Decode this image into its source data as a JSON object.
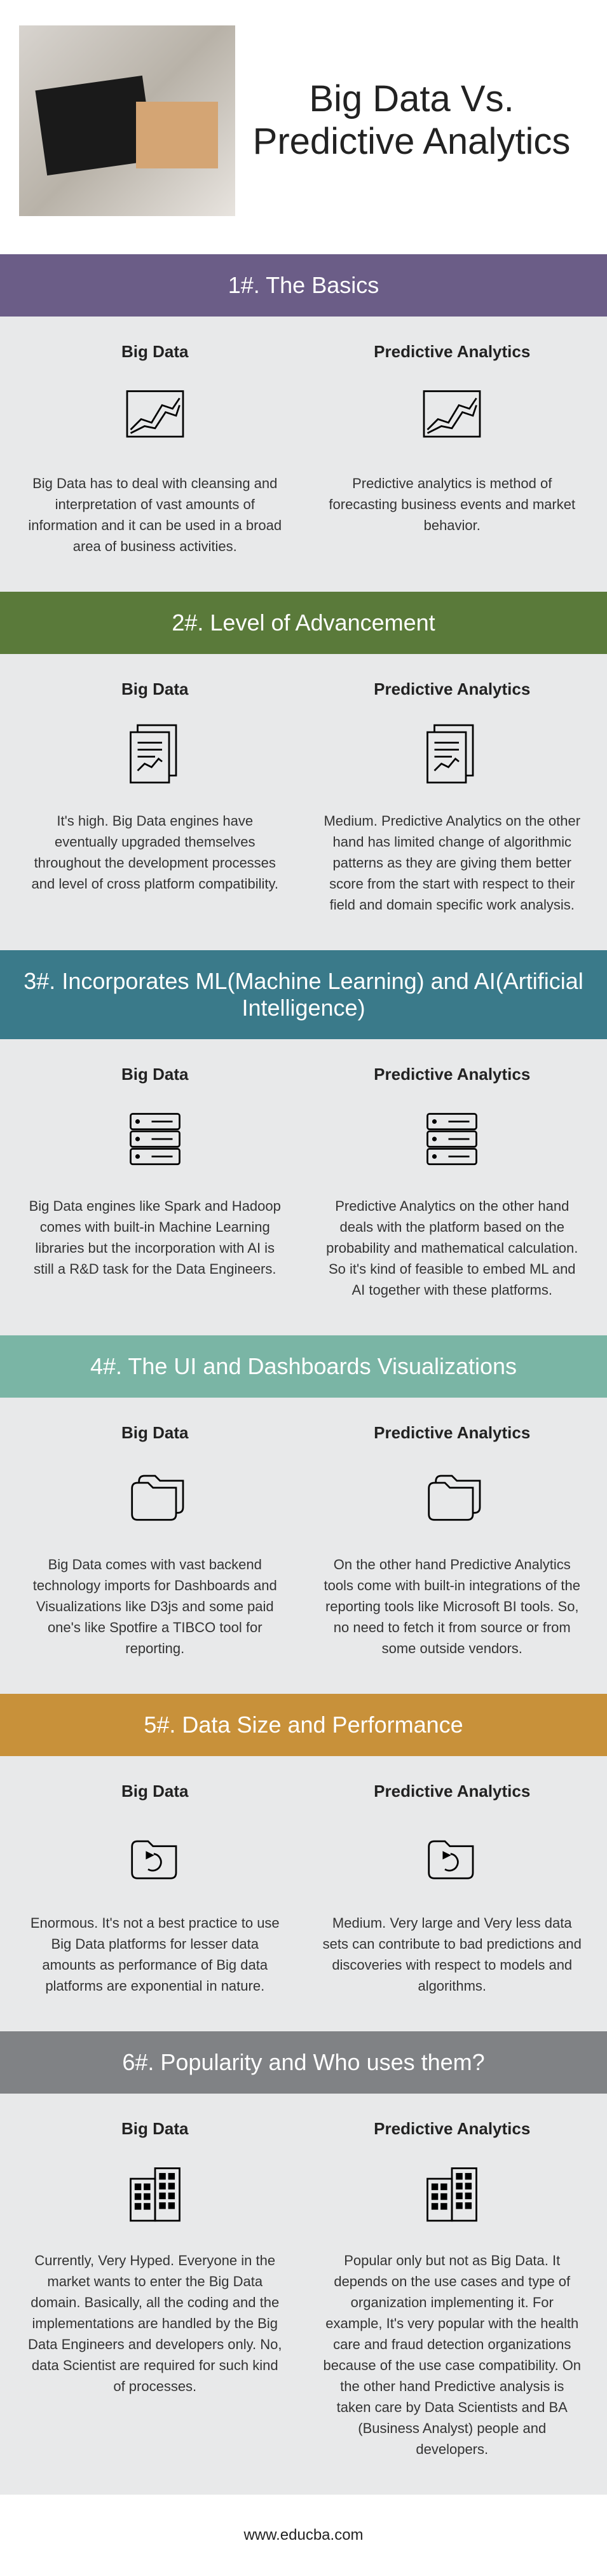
{
  "title": "Big Data Vs. Predictive Analytics",
  "col_labels": {
    "left": "Big Data",
    "right": "Predictive Analytics"
  },
  "sections": [
    {
      "num": "1#.",
      "name": "The Basics",
      "banner_color": "#6b5d87",
      "icon": "chart",
      "left": "Big Data has to deal with cleansing and interpretation of vast amounts of information and it can be used in a broad area of business activities.",
      "right": "Predictive analytics is method of forecasting business events and market behavior."
    },
    {
      "num": "2#.",
      "name": "Level of Advancement",
      "banner_color": "#5a7a3a",
      "icon": "doc",
      "left": "It's high. Big Data engines have eventually upgraded themselves throughout the development processes and level of cross platform compatibility.",
      "right": "Medium. Predictive Analytics on the other hand has limited change of algorithmic patterns as they are giving them better score from the start with respect to their field and domain specific work analysis."
    },
    {
      "num": "3#.",
      "name": "Incorporates ML(Machine Learning) and AI(Artificial Intelligence)",
      "banner_color": "#3a7a8a",
      "icon": "server",
      "left": "Big Data engines like Spark and Hadoop comes with built-in Machine Learning libraries but the incorporation with AI is still a R&D task for the Data Engineers.",
      "right": "Predictive Analytics on the other hand deals with the platform based on the probability and mathematical calculation. So it's kind of feasible to embed ML and AI together with these platforms."
    },
    {
      "num": "4#.",
      "name": "The UI and Dashboards Visualizations",
      "banner_color": "#7ab5a5",
      "icon": "folder",
      "left": "Big Data comes with vast backend technology imports for Dashboards and Visualizations like D3js and some paid one's like Spotfire a TIBCO tool for reporting.",
      "right": "On the other hand Predictive Analytics tools come with built-in integrations of the reporting tools like  Microsoft BI tools. So, no need to fetch it from source or from some outside vendors."
    },
    {
      "num": "5#.",
      "name": "Data Size and Performance",
      "banner_color": "#c8913a",
      "icon": "disk",
      "left": "Enormous. It's not a best practice to use Big Data platforms for lesser data amounts as performance of Big data platforms are exponential in nature.",
      "right": "Medium. Very large and Very less data sets can contribute to bad predictions and discoveries with respect to models and algorithms."
    },
    {
      "num": "6#.",
      "name": "Popularity and Who uses them?",
      "banner_color": "#808285",
      "icon": "building",
      "left": "Currently, Very Hyped. Everyone in the market wants to enter the Big Data domain. Basically, all the coding and the implementations are handled by the Big Data Engineers and developers only. No, data Scientist are required for such kind of processes.",
      "right": "Popular only but not as Big Data. It depends on the use cases and type of organization implementing it. For example, It's very popular with the health care and fraud detection organizations because of the use case compatibility. On the other hand Predictive analysis is taken care by Data Scientists and BA (Business Analyst) people and developers."
    }
  ],
  "footer": "www.educba.com",
  "svg_icons": {
    "chart": "<svg viewBox='0 0 100 100' fill='none' stroke='#000' stroke-width='2.5'><rect x='10' y='15' width='80' height='65'/><path d='M15 70 L30 55 L45 60 L60 35 L75 40 L85 25'/><path d='M15 75 L35 65 L50 68 L65 45 L80 50 L85 35'/></svg>",
    "doc": "<svg viewBox='0 0 100 100' fill='none' stroke='#000' stroke-width='2.5'><rect x='25' y='10' width='55' height='72'/><rect x='15' y='20' width='55' height='72' fill='#e8e9ea'/><line x1='25' y1='35' x2='60' y2='35'/><line x1='25' y1='45' x2='60' y2='45'/><line x1='25' y1='55' x2='50' y2='55'/><path d='M25 75 L35 65 L45 70 L55 58 L60 62'/></svg>",
    "server": "<svg viewBox='0 0 100 100' fill='none' stroke='#000' stroke-width='2.5'><rect x='15' y='15' width='70' height='22' rx='3'/><rect x='15' y='40' width='70' height='22' rx='3'/><rect x='15' y='65' width='70' height='22' rx='3'/><circle cx='25' cy='26' r='2' fill='#000'/><circle cx='25' cy='51' r='2' fill='#000'/><circle cx='25' cy='76' r='2' fill='#000'/><line x1='45' y1='26' x2='75' y2='26'/><line x1='45' y1='51' x2='75' y2='51'/><line x1='45' y1='76' x2='75' y2='76'/></svg>",
    "folder": "<svg viewBox='0 0 100 100' fill='none' stroke='#000' stroke-width='2.5'><path d='M30 25 L45 25 L52 32 L85 32 L85 70 Q85 78 77 78 L30 78 Q22 78 22 70 L22 33 Q22 25 30 25' transform='translate(5,-5)'/><path d='M25 30 L40 30 L47 37 L80 37 L80 75 Q80 83 72 83 L25 83 Q17 83 17 75 L17 38 Q17 30 25 30' fill='#e8e9ea'/></svg>",
    "disk": "<svg viewBox='0 0 100 100' fill='none' stroke='#000' stroke-width='2.5'><path d='M25 30 L40 30 L47 37 L80 37 L80 75 Q80 83 72 83 L25 83 Q17 83 17 75 L17 38 Q17 30 25 30' fill='#e8e9ea'/><path d='M48 48 A12 12 0 1 1 40 70' /><path d='M38 46 L38 54 L46 50 Z' fill='#000'/></svg>",
    "building": "<svg viewBox='0 0 100 100' fill='none' stroke='#000' stroke-width='2.5'><rect x='15' y='30' width='35' height='60'/><rect x='50' y='15' width='35' height='75'/><rect x='22' y='38' width='7' height='7' fill='#000'/><rect x='35' y='38' width='7' height='7' fill='#000'/><rect x='22' y='52' width='7' height='7' fill='#000'/><rect x='35' y='52' width='7' height='7' fill='#000'/><rect x='22' y='66' width='7' height='7' fill='#000'/><rect x='35' y='66' width='7' height='7' fill='#000'/><rect x='57' y='23' width='7' height='7' fill='#000'/><rect x='70' y='23' width='7' height='7' fill='#000'/><rect x='57' y='37' width='7' height='7' fill='#000'/><rect x='70' y='37' width='7' height='7' fill='#000'/><rect x='57' y='51' width='7' height='7' fill='#000'/><rect x='70' y='51' width='7' height='7' fill='#000'/><rect x='57' y='65' width='7' height='7' fill='#000'/><rect x='70' y='65' width='7' height='7' fill='#000'/></svg>"
  }
}
